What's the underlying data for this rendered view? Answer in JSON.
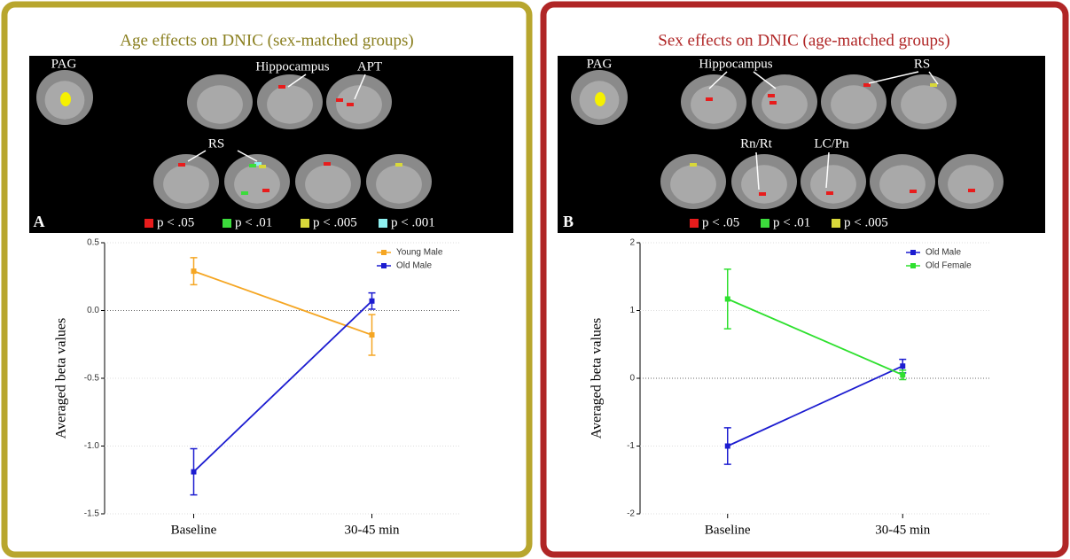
{
  "chart_data": [
    {
      "type": "line",
      "title": "Age effects on DNIC (sex-matched groups)",
      "panel_label": "A",
      "annotations": [
        "PAG",
        "Hippocampus",
        "APT",
        "RS"
      ],
      "p_legend": [
        {
          "label": "p < .05",
          "color": "#e81c1c"
        },
        {
          "label": "p < .01",
          "color": "#3cdc3c"
        },
        {
          "label": "p < .005",
          "color": "#d8d83a"
        },
        {
          "label": "p < .001",
          "color": "#8ef0f0"
        }
      ],
      "ylabel": "Averaged beta values",
      "categories": [
        "Baseline",
        "30-45 min"
      ],
      "series": [
        {
          "name": "Young Male",
          "color": "#f5a623",
          "values": [
            0.29,
            -0.18
          ],
          "errors": [
            0.1,
            0.15
          ]
        },
        {
          "name": "Old Male",
          "color": "#1c1cd0",
          "values": [
            -1.19,
            0.07
          ],
          "errors": [
            0.17,
            0.06
          ]
        }
      ],
      "ylim": [
        -1.5,
        0.5
      ],
      "yticks": [
        0.5,
        {
          "value": 0,
          "label": "0.0"
        },
        -0.5,
        {
          "value": -1,
          "label": "-1.0"
        },
        -1.5
      ],
      "grid": true
    },
    {
      "type": "line",
      "title": "Sex effects on DNIC  (age-matched groups)",
      "panel_label": "B",
      "annotations": [
        "PAG",
        "Hippocampus",
        "RS",
        "Rn/Rt",
        "LC/Pn"
      ],
      "p_legend": [
        {
          "label": "p < .05",
          "color": "#e81c1c"
        },
        {
          "label": "p < .01",
          "color": "#3cdc3c"
        },
        {
          "label": "p < .005",
          "color": "#d8d83a"
        }
      ],
      "ylabel": "Averaged beta values",
      "categories": [
        "Baseline",
        "30-45 min"
      ],
      "series": [
        {
          "name": "Old Male",
          "color": "#1c1cd0",
          "values": [
            -1.0,
            0.18
          ],
          "errors": [
            0.27,
            0.1
          ]
        },
        {
          "name": "Old Female",
          "color": "#2ee02e",
          "values": [
            1.17,
            0.05
          ],
          "errors": [
            0.44,
            0.07
          ]
        }
      ],
      "ylim": [
        -2,
        2
      ],
      "yticks": [
        2,
        1,
        0,
        -1,
        -2
      ],
      "grid": true
    }
  ]
}
